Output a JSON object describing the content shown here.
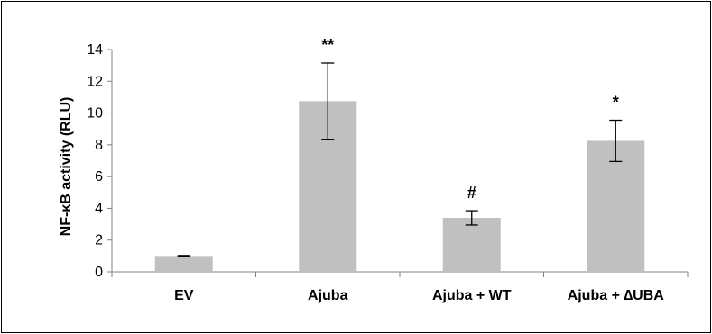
{
  "chart_data": {
    "type": "bar",
    "categories": [
      "EV",
      "Ajuba",
      "Ajuba + WT",
      "Ajuba + ∆UBA"
    ],
    "values": [
      1.0,
      10.75,
      3.4,
      8.25
    ],
    "errors": [
      0.03,
      2.4,
      0.45,
      1.3
    ],
    "significance": [
      "",
      "**",
      "#",
      "*"
    ],
    "title": "",
    "xlabel": "",
    "ylabel": "NF-κB activity (RLU)",
    "ylim": [
      0,
      14
    ],
    "yticks": [
      0,
      2,
      4,
      6,
      8,
      10,
      12,
      14
    ],
    "grid": false,
    "legend": "none",
    "bar_color": "#c0c0c0",
    "axis_color": "#808080"
  }
}
